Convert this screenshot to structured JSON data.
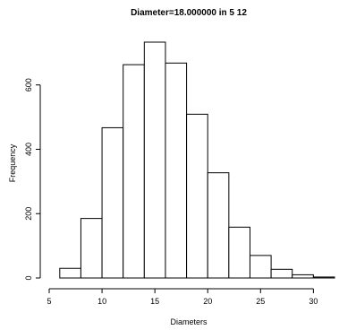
{
  "chart_data": {
    "type": "bar",
    "title": "Diameter=18.000000 in 5 12",
    "xlabel": "Diameters",
    "ylabel": "Frequency",
    "bin_edges": [
      6,
      8,
      10,
      12,
      14,
      16,
      18,
      20,
      22,
      24,
      26,
      28,
      30,
      32
    ],
    "values": [
      30,
      185,
      467,
      663,
      733,
      668,
      509,
      327,
      158,
      70,
      27,
      10,
      3
    ],
    "xlim": [
      5,
      32
    ],
    "ylim": [
      0,
      733
    ],
    "xticks": [
      5,
      10,
      15,
      20,
      25,
      30
    ],
    "yticks": [
      0,
      200,
      400,
      600
    ],
    "grid": false,
    "bar_fill": "#ffffff",
    "bar_stroke": "#000000"
  }
}
